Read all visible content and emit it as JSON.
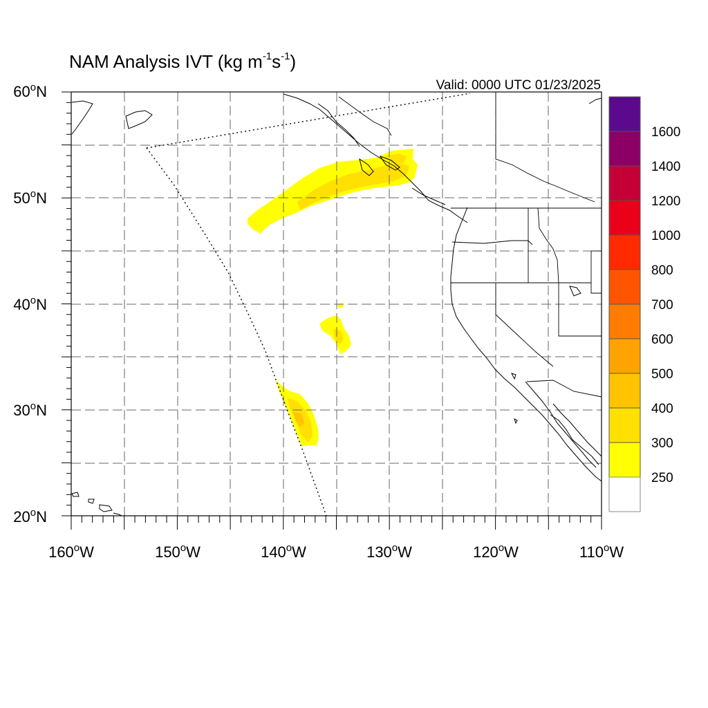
{
  "map": {
    "title_main": "NAM Analysis IVT (kg m",
    "title_exp1": "-1",
    "title_mid": "s",
    "title_exp2": "-1",
    "title_end": ")",
    "valid_text": "Valid: 0000 UTC 01/23/2025",
    "lon_range": [
      -160,
      -110
    ],
    "lat_range": [
      20,
      60
    ],
    "grid": true,
    "lat_labels": [
      {
        "deg": "60",
        "hemi": "N",
        "lat": 60
      },
      {
        "deg": "50",
        "hemi": "N",
        "lat": 50
      },
      {
        "deg": "40",
        "hemi": "N",
        "lat": 40
      },
      {
        "deg": "30",
        "hemi": "N",
        "lat": 30
      },
      {
        "deg": "20",
        "hemi": "N",
        "lat": 20
      }
    ],
    "lon_labels": [
      {
        "deg": "160",
        "hemi": "W",
        "lon": -160
      },
      {
        "deg": "150",
        "hemi": "W",
        "lon": -150
      },
      {
        "deg": "140",
        "hemi": "W",
        "lon": -140
      },
      {
        "deg": "130",
        "hemi": "W",
        "lon": -130
      },
      {
        "deg": "120",
        "hemi": "W",
        "lon": -120
      },
      {
        "deg": "110",
        "hemi": "W",
        "lon": -110
      }
    ],
    "colorbar": {
      "labels": [
        "1600",
        "1400",
        "1200",
        "1000",
        "800",
        "700",
        "600",
        "500",
        "400",
        "300",
        "250"
      ],
      "colors": [
        "#5b0a8e",
        "#8c0066",
        "#c40036",
        "#ea0019",
        "#ff2a00",
        "#ff5500",
        "#ff7c00",
        "#ffa300",
        "#ffc300",
        "#ffe000",
        "#ffff00",
        "#ffffff"
      ]
    }
  }
}
